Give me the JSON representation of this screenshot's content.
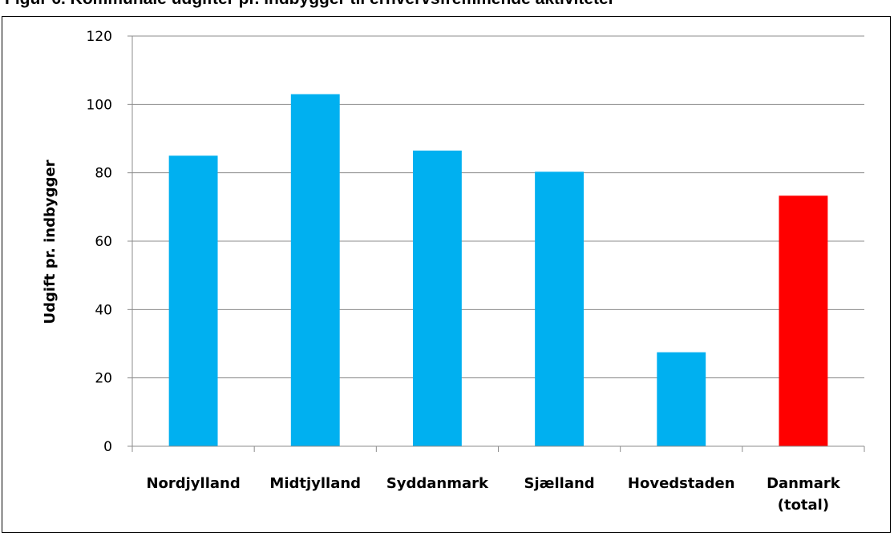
{
  "title": "Figur 6. Kommunale udgifter pr. indbygger til erhvervsfremmende aktiviteter",
  "chart_data": {
    "type": "bar",
    "title": "Figur 6. Kommunale udgifter pr. indbygger til erhvervsfremmende aktiviteter",
    "xlabel": "",
    "ylabel": "Udgift pr. indbygger",
    "ylim": [
      0,
      120
    ],
    "yticks": [
      "0",
      "20",
      "40",
      "60",
      "80",
      "100",
      "120"
    ],
    "categories": [
      [
        "Nordjylland"
      ],
      [
        "Midtjylland"
      ],
      [
        "Syddanmark"
      ],
      [
        "Sjælland"
      ],
      [
        "Hovedstaden"
      ],
      [
        "Danmark",
        "(total)"
      ]
    ],
    "values": [
      85,
      103,
      86.5,
      80.3,
      27.5,
      73.3
    ],
    "bar_colors": [
      "#00b0f0",
      "#00b0f0",
      "#00b0f0",
      "#00b0f0",
      "#00b0f0",
      "#ff0000"
    ],
    "grid": true,
    "legend": "none"
  },
  "colors": {
    "grid": "#8c8c8c",
    "axis": "#8c8c8c"
  }
}
